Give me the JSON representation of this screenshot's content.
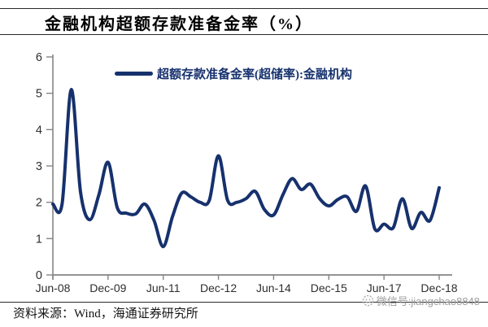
{
  "header": {
    "title": "金融机构超额存款准备金率（%）"
  },
  "legend": {
    "label": "超额存款准备金率(超储率):金融机构"
  },
  "chart_data": {
    "type": "line",
    "title": "金融机构超额存款准备金率（%）",
    "xlabel": "",
    "ylabel": "",
    "grid": false,
    "legend_position": "top",
    "ylim": [
      0,
      6
    ],
    "yticks": [
      0,
      1,
      2,
      3,
      4,
      5,
      6
    ],
    "xticks_shown": [
      "Jun-08",
      "Dec-09",
      "Jun-11",
      "Dec-12",
      "Jun-14",
      "Dec-15",
      "Jun-17",
      "Dec-18"
    ],
    "xtick_every": 6,
    "series": [
      {
        "name": "超额存款准备金率(超储率):金融机构",
        "x_labels": [
          "Jun-08",
          "Sep-08",
          "Dec-08",
          "Mar-09",
          "Jun-09",
          "Sep-09",
          "Dec-09",
          "Mar-10",
          "Jun-10",
          "Sep-10",
          "Dec-10",
          "Mar-11",
          "Jun-11",
          "Sep-11",
          "Dec-11",
          "Mar-12",
          "Jun-12",
          "Sep-12",
          "Dec-12",
          "Mar-13",
          "Jun-13",
          "Sep-13",
          "Dec-13",
          "Mar-14",
          "Jun-14",
          "Sep-14",
          "Dec-14",
          "Mar-15",
          "Jun-15",
          "Sep-15",
          "Dec-15",
          "Mar-16",
          "Jun-16",
          "Sep-16",
          "Dec-16",
          "Mar-17",
          "Jun-17",
          "Sep-17",
          "Dec-17",
          "Mar-18",
          "Jun-18",
          "Sep-18",
          "Dec-18"
        ],
        "values": [
          1.95,
          1.95,
          5.1,
          2.3,
          1.52,
          2.2,
          3.1,
          1.85,
          1.7,
          1.68,
          1.95,
          1.5,
          0.78,
          1.6,
          2.25,
          2.15,
          2.0,
          2.05,
          3.28,
          2.05,
          2.0,
          2.1,
          2.3,
          1.8,
          1.65,
          2.2,
          2.65,
          2.35,
          2.5,
          2.1,
          1.9,
          2.08,
          2.15,
          1.75,
          2.45,
          1.27,
          1.4,
          1.3,
          2.1,
          1.28,
          1.72,
          1.5,
          2.4
        ]
      }
    ]
  },
  "footer": {
    "source": "资料来源：Wind，海通证券研究所"
  },
  "watermark": {
    "icon": "wechat-avatar-icon",
    "text": "微信号:jiangchao8848"
  },
  "colors": {
    "line": "#16316d",
    "axis": "#858585",
    "tick_text": "#2e2e2e",
    "rule": "#2a2a2a",
    "watermark": "#9e9e9e"
  }
}
